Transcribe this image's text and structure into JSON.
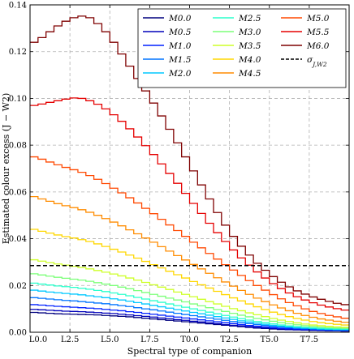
{
  "chart_data": {
    "type": "line",
    "xlabel": "Spectral type of companion",
    "ylabel": "Estimated colour excess (J − W2)",
    "x_categories": [
      "L0.0",
      "L0.5",
      "L1.0",
      "L1.5",
      "L2.0",
      "L2.5",
      "L3.0",
      "L3.5",
      "L4.0",
      "L4.5",
      "L5.0",
      "L5.5",
      "L6.0",
      "L6.5",
      "L7.0",
      "L7.5",
      "L8.0",
      "L8.5",
      "L9.0",
      "L9.5",
      "T0.0",
      "T0.5",
      "T1.0",
      "T1.5",
      "T2.0",
      "T2.5",
      "T3.0",
      "T3.5",
      "T4.0",
      "T4.5",
      "T5.0",
      "T5.5",
      "T6.0",
      "T6.5",
      "T7.0",
      "T7.5",
      "T8.0",
      "T8.5",
      "T9.0",
      "T9.5"
    ],
    "x_tick_labels": [
      "L0.0",
      "L2.5",
      "L5.0",
      "L7.5",
      "T0.0",
      "T2.5",
      "T5.0",
      "T7.5"
    ],
    "ylim": [
      0.0,
      0.14
    ],
    "y_ticks": [
      "0.00",
      "0.02",
      "0.04",
      "0.06",
      "0.08",
      "0.10",
      "0.12",
      "0.14"
    ],
    "grid": true,
    "legend_position": "top-right",
    "threshold": {
      "name": "σ_{J,W2}",
      "value": 0.0285,
      "color": "#000000"
    },
    "series": [
      {
        "name": "M0.0",
        "color": "#00007f",
        "values": [
          0.0085,
          0.0083,
          0.0081,
          0.0079,
          0.0078,
          0.0077,
          0.0076,
          0.0075,
          0.0074,
          0.0072,
          0.007,
          0.0068,
          0.0066,
          0.0063,
          0.006,
          0.0057,
          0.0054,
          0.0051,
          0.0048,
          0.0045,
          0.0042,
          0.0039,
          0.0036,
          0.0033,
          0.003,
          0.0027,
          0.0024,
          0.0021,
          0.0018,
          0.0016,
          0.0014,
          0.0012,
          0.0011,
          0.001,
          0.0009,
          0.0008,
          0.0007,
          0.0006,
          0.0006,
          0.0005
        ]
      },
      {
        "name": "M0.5",
        "color": "#0000ba",
        "values": [
          0.0098,
          0.0096,
          0.0094,
          0.0092,
          0.009,
          0.0089,
          0.0088,
          0.0086,
          0.0084,
          0.0082,
          0.008,
          0.0077,
          0.0074,
          0.0071,
          0.0068,
          0.0065,
          0.0061,
          0.0058,
          0.0054,
          0.0051,
          0.0047,
          0.0044,
          0.004,
          0.0037,
          0.0033,
          0.003,
          0.0027,
          0.0024,
          0.0021,
          0.0018,
          0.0016,
          0.0014,
          0.0012,
          0.0011,
          0.001,
          0.0009,
          0.0008,
          0.0007,
          0.0007,
          0.0006
        ]
      },
      {
        "name": "M1.0",
        "color": "#0020ff",
        "values": [
          0.0118,
          0.0116,
          0.0113,
          0.0111,
          0.0109,
          0.0107,
          0.0105,
          0.0103,
          0.0101,
          0.0098,
          0.0095,
          0.0092,
          0.0088,
          0.0085,
          0.0081,
          0.0077,
          0.0073,
          0.0069,
          0.0065,
          0.0061,
          0.0057,
          0.0053,
          0.0049,
          0.0045,
          0.0041,
          0.0037,
          0.0033,
          0.0029,
          0.0026,
          0.0023,
          0.002,
          0.0017,
          0.0015,
          0.0013,
          0.0012,
          0.0011,
          0.001,
          0.0009,
          0.0008,
          0.0008
        ]
      },
      {
        "name": "M1.5",
        "color": "#0074ff",
        "values": [
          0.0148,
          0.0145,
          0.0142,
          0.0139,
          0.0136,
          0.0134,
          0.0131,
          0.0128,
          0.0125,
          0.0122,
          0.0118,
          0.0114,
          0.011,
          0.0105,
          0.01,
          0.0096,
          0.0091,
          0.0086,
          0.0081,
          0.0076,
          0.0071,
          0.0066,
          0.0061,
          0.0056,
          0.0051,
          0.0046,
          0.0041,
          0.0037,
          0.0033,
          0.0029,
          0.0025,
          0.0022,
          0.0019,
          0.0017,
          0.0015,
          0.0013,
          0.0012,
          0.0011,
          0.001,
          0.001
        ]
      },
      {
        "name": "M2.0",
        "color": "#00c8ff",
        "values": [
          0.018,
          0.0176,
          0.0172,
          0.0169,
          0.0166,
          0.0163,
          0.016,
          0.0156,
          0.0152,
          0.0148,
          0.0143,
          0.0138,
          0.0133,
          0.0127,
          0.0121,
          0.0115,
          0.0109,
          0.0103,
          0.0097,
          0.0091,
          0.0085,
          0.0079,
          0.0073,
          0.0067,
          0.0061,
          0.0055,
          0.0049,
          0.0044,
          0.0039,
          0.0034,
          0.003,
          0.0026,
          0.0023,
          0.002,
          0.0018,
          0.0016,
          0.0014,
          0.0013,
          0.0012,
          0.0011
        ]
      },
      {
        "name": "M2.5",
        "color": "#2affcc",
        "values": [
          0.021,
          0.0206,
          0.0202,
          0.0198,
          0.0195,
          0.0192,
          0.0188,
          0.0184,
          0.0179,
          0.0174,
          0.0168,
          0.0162,
          0.0156,
          0.0149,
          0.0142,
          0.0135,
          0.0128,
          0.0121,
          0.0114,
          0.0107,
          0.01,
          0.0093,
          0.0086,
          0.0079,
          0.0072,
          0.0065,
          0.0058,
          0.0052,
          0.0046,
          0.0041,
          0.0036,
          0.0031,
          0.0027,
          0.0024,
          0.0021,
          0.0019,
          0.0017,
          0.0015,
          0.0014,
          0.0013
        ]
      },
      {
        "name": "M3.0",
        "color": "#7cff79",
        "values": [
          0.025,
          0.0245,
          0.024,
          0.0235,
          0.0231,
          0.0227,
          0.0223,
          0.0218,
          0.0212,
          0.0206,
          0.02,
          0.0193,
          0.0186,
          0.0178,
          0.017,
          0.0162,
          0.0154,
          0.0146,
          0.0138,
          0.013,
          0.0121,
          0.0113,
          0.0105,
          0.0097,
          0.0089,
          0.0081,
          0.0073,
          0.0066,
          0.0059,
          0.0053,
          0.0047,
          0.0041,
          0.0036,
          0.0032,
          0.0028,
          0.0025,
          0.0022,
          0.002,
          0.0018,
          0.0017
        ]
      },
      {
        "name": "M3.5",
        "color": "#ceff29",
        "values": [
          0.031,
          0.0304,
          0.0298,
          0.0292,
          0.0287,
          0.0282,
          0.0277,
          0.0271,
          0.0264,
          0.0257,
          0.0249,
          0.0241,
          0.0232,
          0.0223,
          0.0213,
          0.0203,
          0.0193,
          0.0183,
          0.0172,
          0.0162,
          0.0152,
          0.0141,
          0.0131,
          0.0121,
          0.0111,
          0.0101,
          0.0092,
          0.0083,
          0.0075,
          0.0067,
          0.0059,
          0.0052,
          0.0046,
          0.004,
          0.0035,
          0.0031,
          0.0028,
          0.0025,
          0.0023,
          0.0021
        ]
      },
      {
        "name": "M4.0",
        "color": "#ffd700",
        "values": [
          0.044,
          0.0432,
          0.0424,
          0.0416,
          0.0409,
          0.0403,
          0.0396,
          0.0388,
          0.0378,
          0.0367,
          0.0355,
          0.0343,
          0.033,
          0.0317,
          0.0303,
          0.0289,
          0.0275,
          0.0261,
          0.0246,
          0.0232,
          0.0217,
          0.0203,
          0.0189,
          0.0175,
          0.0161,
          0.0147,
          0.0134,
          0.0121,
          0.0109,
          0.0097,
          0.0086,
          0.0076,
          0.0067,
          0.0059,
          0.0052,
          0.0046,
          0.0041,
          0.0037,
          0.0034,
          0.0031
        ]
      },
      {
        "name": "M4.5",
        "color": "#ff8c00",
        "values": [
          0.058,
          0.057,
          0.056,
          0.055,
          0.0541,
          0.0533,
          0.0524,
          0.0513,
          0.05,
          0.0486,
          0.0471,
          0.0455,
          0.0438,
          0.0421,
          0.0403,
          0.0385,
          0.0366,
          0.0347,
          0.0328,
          0.0309,
          0.029,
          0.0271,
          0.0252,
          0.0233,
          0.0215,
          0.0197,
          0.0179,
          0.0162,
          0.0146,
          0.0131,
          0.0117,
          0.0104,
          0.0092,
          0.0081,
          0.0072,
          0.0064,
          0.0057,
          0.0052,
          0.0047,
          0.0043
        ]
      },
      {
        "name": "M5.0",
        "color": "#ff4800",
        "values": [
          0.075,
          0.074,
          0.0728,
          0.0716,
          0.0705,
          0.0695,
          0.0684,
          0.067,
          0.0654,
          0.0636,
          0.0616,
          0.0596,
          0.0575,
          0.0553,
          0.053,
          0.0507,
          0.0483,
          0.0459,
          0.0435,
          0.041,
          0.0385,
          0.0361,
          0.0337,
          0.0313,
          0.0289,
          0.0266,
          0.0243,
          0.0221,
          0.02,
          0.018,
          0.0161,
          0.0143,
          0.0127,
          0.0113,
          0.01,
          0.0089,
          0.008,
          0.0072,
          0.0066,
          0.006
        ]
      },
      {
        "name": "M5.5",
        "color": "#e50000",
        "values": [
          0.097,
          0.0976,
          0.0983,
          0.099,
          0.0997,
          0.1002,
          0.1,
          0.099,
          0.0975,
          0.0955,
          0.093,
          0.0902,
          0.087,
          0.0835,
          0.0798,
          0.076,
          0.072,
          0.0679,
          0.0637,
          0.0594,
          0.0551,
          0.0508,
          0.0466,
          0.0426,
          0.0388,
          0.0352,
          0.0318,
          0.0287,
          0.0258,
          0.0232,
          0.0208,
          0.0187,
          0.0168,
          0.0152,
          0.0138,
          0.0126,
          0.0116,
          0.0108,
          0.0101,
          0.0095
        ]
      },
      {
        "name": "M6.0",
        "color": "#7f0000",
        "values": [
          0.124,
          0.126,
          0.1285,
          0.131,
          0.133,
          0.1345,
          0.1352,
          0.1345,
          0.132,
          0.1285,
          0.124,
          0.119,
          0.1138,
          0.1085,
          0.1032,
          0.098,
          0.0925,
          0.0868,
          0.081,
          0.075,
          0.069,
          0.063,
          0.057,
          0.0512,
          0.0458,
          0.041,
          0.0368,
          0.033,
          0.0295,
          0.0265,
          0.0238,
          0.0214,
          0.0194,
          0.0177,
          0.0163,
          0.0151,
          0.0141,
          0.0132,
          0.0124,
          0.0118
        ]
      }
    ]
  }
}
